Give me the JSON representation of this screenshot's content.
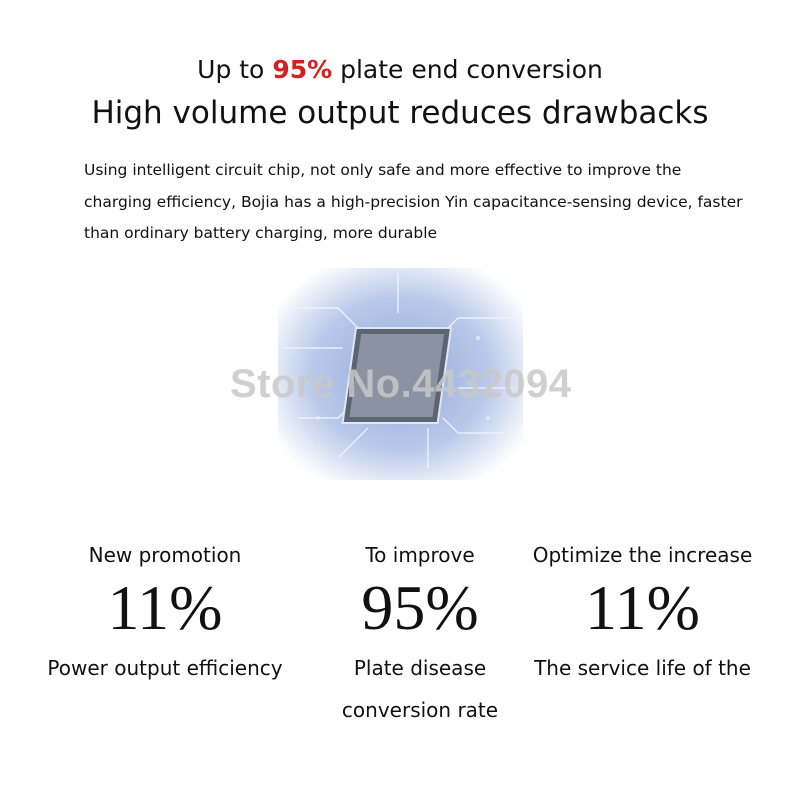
{
  "header": {
    "line1_prefix": "Up to ",
    "line1_highlight": "95%",
    "line1_suffix": " plate end conversion",
    "line2": "High volume output reduces drawbacks",
    "highlight_color": "#d81e1e"
  },
  "description": "Using intelligent circuit chip, not only safe and more effective to improve the charging efficiency, Bojia has a high-precision Yin capacitance-sensing device, faster than ordinary battery charging, more durable",
  "image": {
    "name": "circuit-chip-image",
    "watermark": "Store No.4432094"
  },
  "stats": [
    {
      "top": "New promotion",
      "value": "11%",
      "bottom": "Power output efficiency"
    },
    {
      "top": "To improve",
      "value": "95%",
      "bottom": "Plate disease conversion rate"
    },
    {
      "top": "Optimize the increase",
      "value": "11%",
      "bottom": "The service life of the"
    }
  ]
}
